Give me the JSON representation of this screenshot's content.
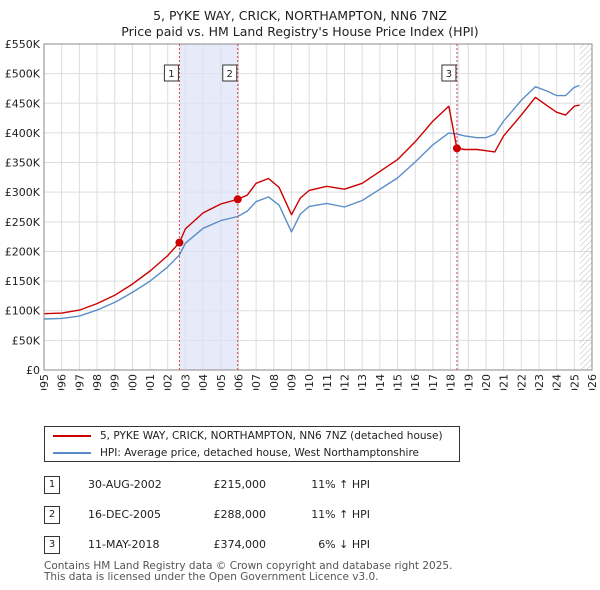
{
  "title_line1": "5, PYKE WAY, CRICK, NORTHAMPTON, NN6 7NZ",
  "title_line2": "Price paid vs. HM Land Registry's House Price Index (HPI)",
  "chart_data": {
    "type": "line",
    "title": "5, PYKE WAY, CRICK, NORTHAMPTON, NN6 7NZ - Price paid vs. HM Land Registry's House Price Index (HPI)",
    "xlabel": "",
    "ylabel": "",
    "xlim": [
      1995,
      2026
    ],
    "ylim": [
      0,
      550000
    ],
    "y_ticks": [
      {
        "value": 0,
        "label": "£0"
      },
      {
        "value": 50000,
        "label": "£50K"
      },
      {
        "value": 100000,
        "label": "£100K"
      },
      {
        "value": 150000,
        "label": "£150K"
      },
      {
        "value": 200000,
        "label": "£200K"
      },
      {
        "value": 250000,
        "label": "£250K"
      },
      {
        "value": 300000,
        "label": "£300K"
      },
      {
        "value": 350000,
        "label": "£350K"
      },
      {
        "value": 400000,
        "label": "£400K"
      },
      {
        "value": 450000,
        "label": "£450K"
      },
      {
        "value": 500000,
        "label": "£500K"
      },
      {
        "value": 550000,
        "label": "£550K"
      }
    ],
    "x_ticks": [
      "1995",
      "1996",
      "1997",
      "1998",
      "1999",
      "2000",
      "2001",
      "2002",
      "2003",
      "2004",
      "2005",
      "2006",
      "2007",
      "2008",
      "2009",
      "2010",
      "2011",
      "2012",
      "2013",
      "2014",
      "2015",
      "2016",
      "2017",
      "2018",
      "2019",
      "2020",
      "2021",
      "2022",
      "2023",
      "2024",
      "2025",
      "2026"
    ],
    "grid": true,
    "legend_position": "below",
    "shaded_periods": [
      {
        "from": 2002.66,
        "to": 2005.96
      },
      {
        "from": 2018.36,
        "to": 2018.5
      }
    ],
    "future_hatch_from": 2025.3,
    "series": [
      {
        "name": "5, PYKE WAY, CRICK, NORTHAMPTON, NN6 7NZ (detached house)",
        "color": "#cc0000",
        "points": [
          [
            1995,
            95000
          ],
          [
            1996,
            96000
          ],
          [
            1997,
            101000
          ],
          [
            1998,
            112000
          ],
          [
            1999,
            126000
          ],
          [
            2000,
            145000
          ],
          [
            2001,
            167000
          ],
          [
            2002,
            193000
          ],
          [
            2002.66,
            215000
          ],
          [
            2003,
            238000
          ],
          [
            2004,
            265000
          ],
          [
            2005,
            280000
          ],
          [
            2005.96,
            288000
          ],
          [
            2006.5,
            295000
          ],
          [
            2007,
            315000
          ],
          [
            2007.7,
            323000
          ],
          [
            2008.3,
            308000
          ],
          [
            2009,
            262000
          ],
          [
            2009.5,
            290000
          ],
          [
            2010,
            303000
          ],
          [
            2011,
            310000
          ],
          [
            2012,
            305000
          ],
          [
            2013,
            315000
          ],
          [
            2014,
            335000
          ],
          [
            2015,
            355000
          ],
          [
            2016,
            385000
          ],
          [
            2017,
            420000
          ],
          [
            2017.9,
            445000
          ],
          [
            2018.36,
            374000
          ],
          [
            2018.8,
            372000
          ],
          [
            2019.5,
            372000
          ],
          [
            2020,
            370000
          ],
          [
            2020.5,
            368000
          ],
          [
            2021,
            395000
          ],
          [
            2022,
            430000
          ],
          [
            2022.8,
            460000
          ],
          [
            2023.5,
            445000
          ],
          [
            2024,
            435000
          ],
          [
            2024.5,
            430000
          ],
          [
            2025,
            445000
          ],
          [
            2025.3,
            447000
          ]
        ]
      },
      {
        "name": "HPI: Average price, detached house, West Northamptonshire",
        "color": "#5b8ec8",
        "points": [
          [
            1995,
            86000
          ],
          [
            1996,
            87000
          ],
          [
            1997,
            91000
          ],
          [
            1998,
            101000
          ],
          [
            1999,
            114000
          ],
          [
            2000,
            131000
          ],
          [
            2001,
            150000
          ],
          [
            2002,
            174000
          ],
          [
            2002.66,
            194000
          ],
          [
            2003,
            214000
          ],
          [
            2004,
            239000
          ],
          [
            2005,
            252000
          ],
          [
            2005.96,
            259000
          ],
          [
            2006.5,
            268000
          ],
          [
            2007,
            284000
          ],
          [
            2007.7,
            292000
          ],
          [
            2008.3,
            278000
          ],
          [
            2009,
            233000
          ],
          [
            2009.5,
            263000
          ],
          [
            2010,
            276000
          ],
          [
            2011,
            281000
          ],
          [
            2012,
            275000
          ],
          [
            2013,
            286000
          ],
          [
            2014,
            305000
          ],
          [
            2015,
            324000
          ],
          [
            2016,
            351000
          ],
          [
            2017,
            380000
          ],
          [
            2017.9,
            400000
          ],
          [
            2018.36,
            398000
          ],
          [
            2018.8,
            395000
          ],
          [
            2019.5,
            392000
          ],
          [
            2020,
            392000
          ],
          [
            2020.5,
            398000
          ],
          [
            2021,
            420000
          ],
          [
            2022,
            455000
          ],
          [
            2022.8,
            478000
          ],
          [
            2023.5,
            470000
          ],
          [
            2024,
            463000
          ],
          [
            2024.5,
            463000
          ],
          [
            2025,
            477000
          ],
          [
            2025.3,
            480000
          ]
        ]
      }
    ],
    "annotations": [
      {
        "label": "1",
        "x": 2002.66,
        "value": 215000
      },
      {
        "label": "2",
        "x": 2005.96,
        "value": 288000
      },
      {
        "label": "3",
        "x": 2018.36,
        "value": 374000
      }
    ]
  },
  "legend": [
    {
      "label": "5, PYKE WAY, CRICK, NORTHAMPTON, NN6 7NZ (detached house)",
      "color": "#cc0000"
    },
    {
      "label": "HPI: Average price, detached house, West Northamptonshire",
      "color": "#5b8ec8"
    }
  ],
  "transactions": [
    {
      "id": "1",
      "date": "30-AUG-2002",
      "price": "£215,000",
      "hpi": "11% ↑ HPI"
    },
    {
      "id": "2",
      "date": "16-DEC-2005",
      "price": "£288,000",
      "hpi": "11% ↑ HPI"
    },
    {
      "id": "3",
      "date": "11-MAY-2018",
      "price": "£374,000",
      "hpi": "6% ↓ HPI"
    }
  ],
  "footer": {
    "line1": "Contains HM Land Registry data © Crown copyright and database right 2025.",
    "line2": "This data is licensed under the Open Government Licence v3.0."
  }
}
